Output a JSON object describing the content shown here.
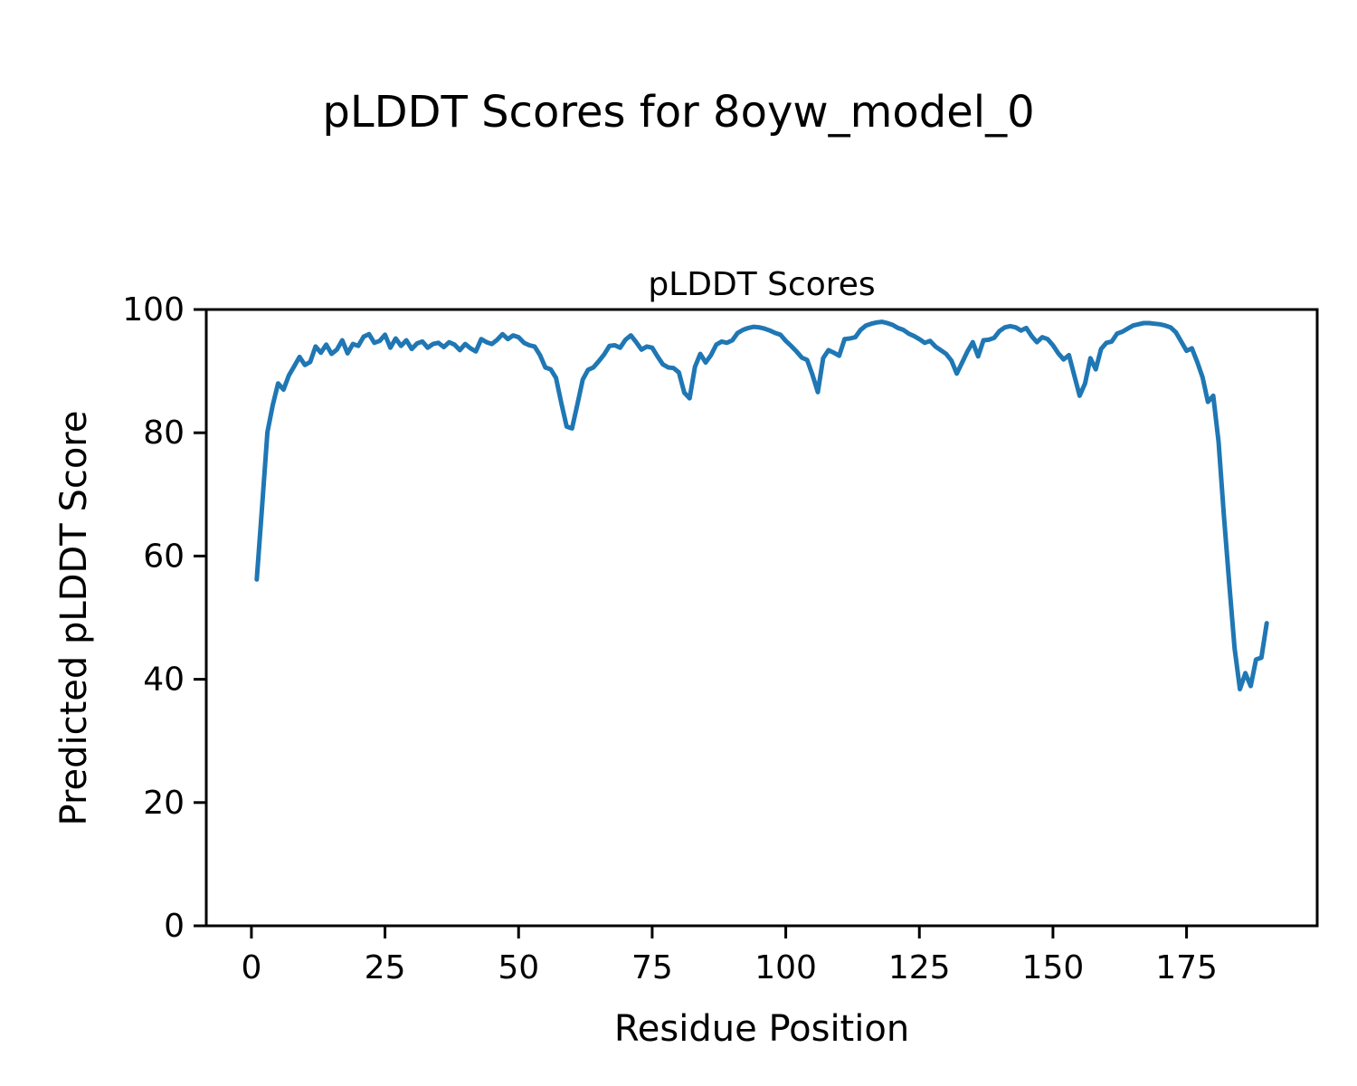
{
  "figure": {
    "title": "pLDDT Scores for 8oyw_model_0",
    "background_color": "#ffffff"
  },
  "chart_data": {
    "type": "line",
    "title": "pLDDT Scores",
    "xlabel": "Residue Position",
    "ylabel": "Predicted pLDDT Score",
    "grid": false,
    "legend": "none",
    "axis_color": "#000000",
    "text_color": "#000000",
    "xlim": [
      -8.45,
      199.45
    ],
    "ylim": [
      0,
      100
    ],
    "xticks": [
      0,
      25,
      50,
      75,
      100,
      125,
      150,
      175
    ],
    "yticks": [
      0,
      20,
      40,
      60,
      80,
      100
    ],
    "series": [
      {
        "name": "pLDDT",
        "color": "#1f77b4",
        "line_width": 5,
        "x_start": 1,
        "x_step": 1,
        "values": [
          56.2,
          68.0,
          80.1,
          84.5,
          88.0,
          87.0,
          89.3,
          90.8,
          92.3,
          91.0,
          91.5,
          94.0,
          93.0,
          94.3,
          92.8,
          93.5,
          95.0,
          92.9,
          94.4,
          94.1,
          95.6,
          96.0,
          94.6,
          94.9,
          95.9,
          93.8,
          95.3,
          94.1,
          95.0,
          93.6,
          94.5,
          94.8,
          93.8,
          94.4,
          94.6,
          93.9,
          94.7,
          94.3,
          93.4,
          94.4,
          93.7,
          93.2,
          95.2,
          94.7,
          94.4,
          95.1,
          96.0,
          95.2,
          95.8,
          95.5,
          94.6,
          94.2,
          94.0,
          92.6,
          90.6,
          90.3,
          88.9,
          84.8,
          81.0,
          80.7,
          84.6,
          88.6,
          90.2,
          90.6,
          91.6,
          92.7,
          94.1,
          94.2,
          93.8,
          95.1,
          95.8,
          94.7,
          93.5,
          94.0,
          93.8,
          92.4,
          91.1,
          90.6,
          90.5,
          89.8,
          86.5,
          85.6,
          90.7,
          92.8,
          91.4,
          92.6,
          94.3,
          94.8,
          94.6,
          95.0,
          96.2,
          96.7,
          97.0,
          97.2,
          97.1,
          96.9,
          96.6,
          96.2,
          95.9,
          94.9,
          94.1,
          93.2,
          92.2,
          91.8,
          89.4,
          86.6,
          92.1,
          93.4,
          93.0,
          92.5,
          95.2,
          95.3,
          95.5,
          96.7,
          97.4,
          97.7,
          97.9,
          98.0,
          97.8,
          97.5,
          97.0,
          96.7,
          96.1,
          95.7,
          95.2,
          94.6,
          94.9,
          94.0,
          93.4,
          92.8,
          91.7,
          89.6,
          91.4,
          93.2,
          94.7,
          92.4,
          95.0,
          95.1,
          95.4,
          96.5,
          97.1,
          97.3,
          97.1,
          96.6,
          97.0,
          95.7,
          94.7,
          95.5,
          95.2,
          94.2,
          92.9,
          91.9,
          92.6,
          89.3,
          86.0,
          88.0,
          92.1,
          90.3,
          93.6,
          94.6,
          94.8,
          96.1,
          96.4,
          96.9,
          97.4,
          97.6,
          97.8,
          97.8,
          97.7,
          97.6,
          97.4,
          97.1,
          96.3,
          94.8,
          93.3,
          93.7,
          91.5,
          89.0,
          85.0,
          86.0,
          78.5,
          66.5,
          55.5,
          45.0,
          38.4,
          41.0,
          38.9,
          43.2,
          43.5,
          49.1
        ]
      }
    ]
  }
}
